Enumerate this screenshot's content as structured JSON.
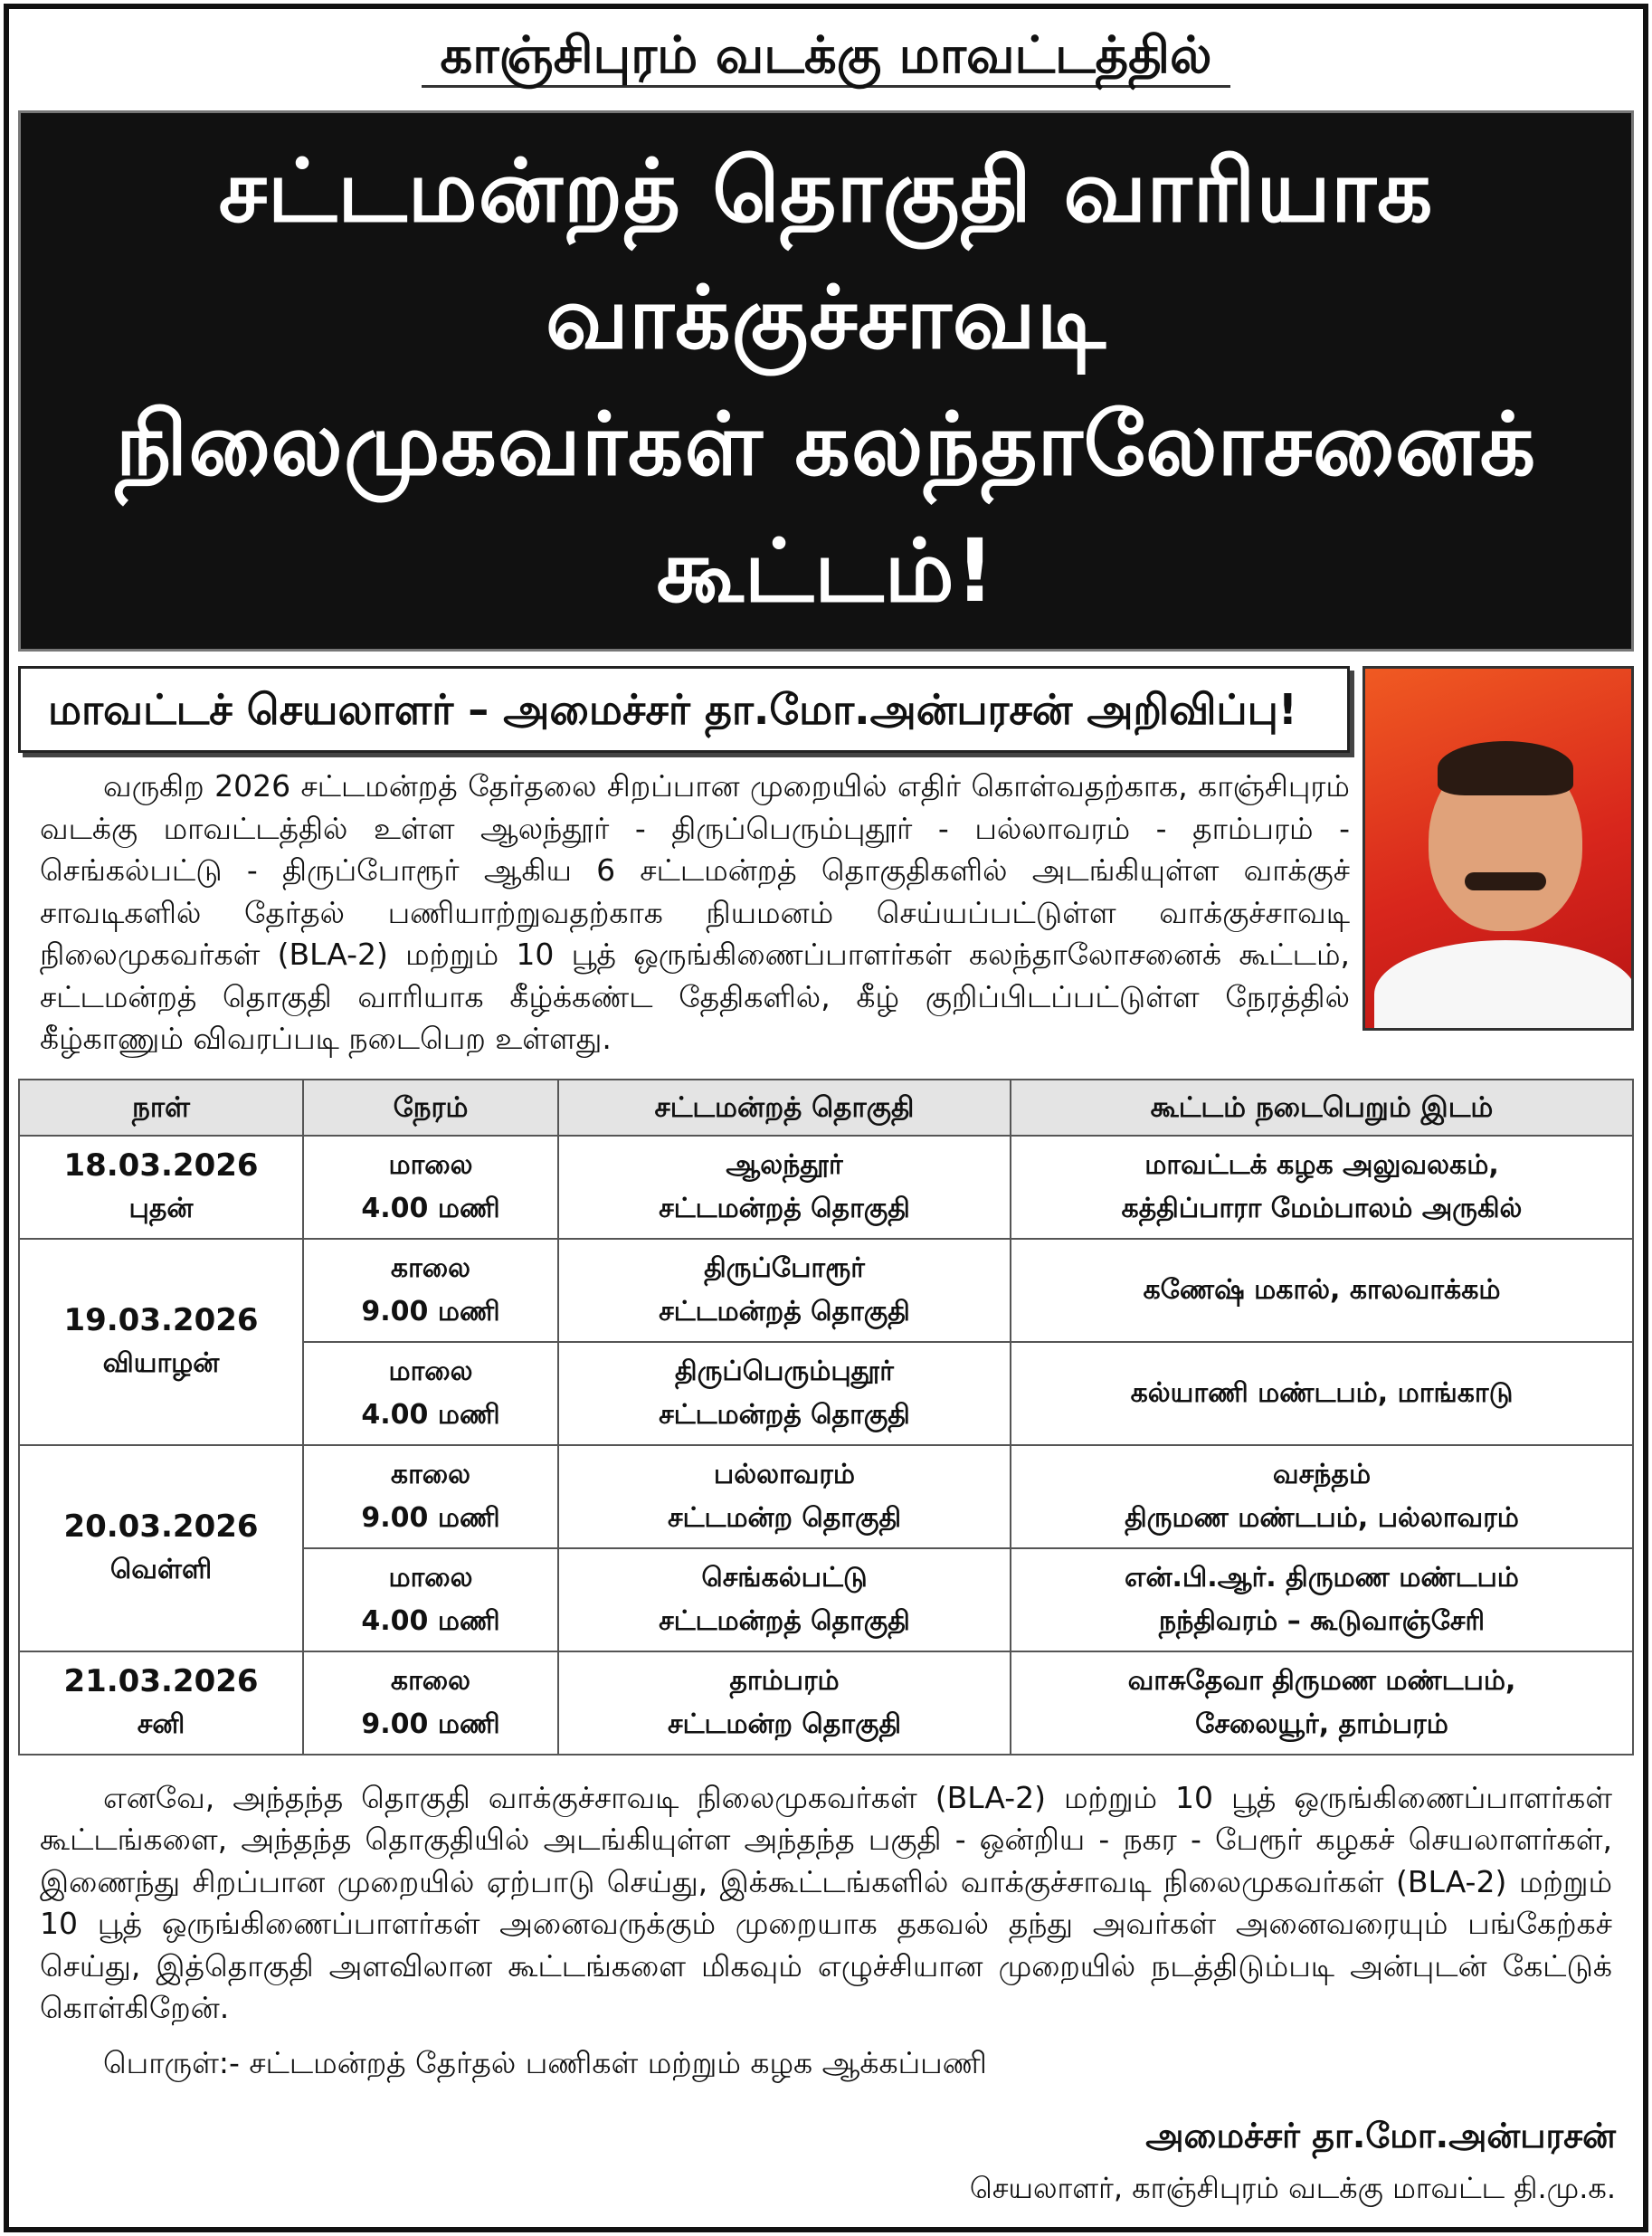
{
  "header": {
    "district_title": "காஞ்சிபுரம் வடக்கு மாவட்டத்தில்",
    "banner_line1": "சட்டமன்றத் தொகுதி வாரியாக வாக்குச்சாவடி",
    "banner_line2": "நிலைமுகவர்கள் கலந்தாலோசனைக் கூட்டம்!",
    "subtitle": "மாவட்டச் செயலாளர் – அமைச்சர் தா.மோ.அன்பரசன் அறிவிப்பு!"
  },
  "intro": "வருகிற 2026 சட்டமன்றத் தேர்தலை சிறப்பான முறையில் எதிர் கொள்வதற்காக, காஞ்சிபுரம் வடக்கு மாவட்டத்தில் உள்ள ஆலந்தூர் - திருப்பெரும்புதூர் - பல்லாவரம் - தாம்பரம் - செங்கல்பட்டு - திருப்போரூர் ஆகிய 6 சட்டமன்றத் தொகுதிகளில் அடங்கியுள்ள வாக்குச் சாவடிகளில் தேர்தல் பணியாற்றுவதற்காக நியமனம் செய்யப்பட்டுள்ள வாக்குச்சாவடி நிலைமுகவர்கள் (BLA-2) மற்றும் 10 பூத் ஒருங்கிணைப்பாளர்கள் கலந்தாலோசனைக் கூட்டம், சட்டமன்றத் தொகுதி வாரியாக கீழ்க்கண்ட தேதிகளில், கீழ் குறிப்பிடப்பட்டுள்ள நேரத்தில் கீழ்காணும் விவரப்படி நடைபெற உள்ளது.",
  "table": {
    "headers": [
      "நாள்",
      "நேரம்",
      "சட்டமன்றத் தொகுதி",
      "கூட்டம் நடைபெறும் இடம்"
    ],
    "dates": [
      {
        "date": "18.03.2026",
        "day": "புதன்"
      },
      {
        "date": "19.03.2026",
        "day": "வியாழன்"
      },
      {
        "date": "20.03.2026",
        "day": "வெள்ளி"
      },
      {
        "date": "21.03.2026",
        "day": "சனி"
      }
    ],
    "rows": [
      {
        "period": "மாலை",
        "time": "4.00 மணி",
        "constituency": "ஆலந்தூர்",
        "suffix": "சட்டமன்றத் தொகுதி",
        "venue1": "மாவட்டக் கழக அலுவலகம்,",
        "venue2": "கத்திப்பாரா மேம்பாலம் அருகில்"
      },
      {
        "period": "காலை",
        "time": "9.00 மணி",
        "constituency": "திருப்போரூர்",
        "suffix": "சட்டமன்றத் தொகுதி",
        "venue1": "கணேஷ் மகால், காலவாக்கம்",
        "venue2": ""
      },
      {
        "period": "மாலை",
        "time": "4.00 மணி",
        "constituency": "திருப்பெரும்புதூர்",
        "suffix": "சட்டமன்றத் தொகுதி",
        "venue1": "கல்யாணி மண்டபம், மாங்காடு",
        "venue2": ""
      },
      {
        "period": "காலை",
        "time": "9.00 மணி",
        "constituency": "பல்லாவரம்",
        "suffix": "சட்டமன்ற தொகுதி",
        "venue1": "வசந்தம்",
        "venue2": "திருமண மண்டபம், பல்லாவரம்"
      },
      {
        "period": "மாலை",
        "time": "4.00 மணி",
        "constituency": "செங்கல்பட்டு",
        "suffix": "சட்டமன்றத் தொகுதி",
        "venue1": "என்.பி.ஆர். திருமண மண்டபம்",
        "venue2": "நந்திவரம் – கூடுவாஞ்சேரி"
      },
      {
        "period": "காலை",
        "time": "9.00 மணி",
        "constituency": "தாம்பரம்",
        "suffix": "சட்டமன்ற தொகுதி",
        "venue1": "வாசுதேவா திருமண மண்டபம்,",
        "venue2": "சேலையூர், தாம்பரம்"
      }
    ]
  },
  "closing": "எனவே, அந்தந்த தொகுதி வாக்குச்சாவடி நிலைமுகவர்கள் (BLA-2) மற்றும் 10 பூத் ஒருங்கிணைப்பாளர்கள் கூட்டங்களை, அந்தந்த தொகுதியில் அடங்கியுள்ள அந்தந்த பகுதி - ஒன்றிய - நகர - பேரூர் கழகச் செயலாளர்கள், இணைந்து சிறப்பான முறையில் ஏற்பாடு செய்து, இக்கூட்டங்களில் வாக்குச்சாவடி நிலைமுகவர்கள் (BLA-2) மற்றும் 10 பூத் ஒருங்கிணைப்பாளர்கள் அனைவருக்கும் முறையாக தகவல் தந்து அவர்கள் அனைவரையும் பங்கேற்கச் செய்து, இத்தொகுதி அளவிலான கூட்டங்களை மிகவும் எழுச்சியான முறையில் நடத்திடும்படி அன்புடன் கேட்டுக் கொள்கிறேன்.",
  "subject": "பொருள்:- சட்டமன்றத் தேர்தல் பணிகள் மற்றும் கழக ஆக்கப்பணி",
  "signature": {
    "name": "அமைச்சர் தா.மோ.அன்பரசன்",
    "designation": "செயலாளர், காஞ்சிபுரம் வடக்கு மாவட்ட தி.மு.க."
  }
}
